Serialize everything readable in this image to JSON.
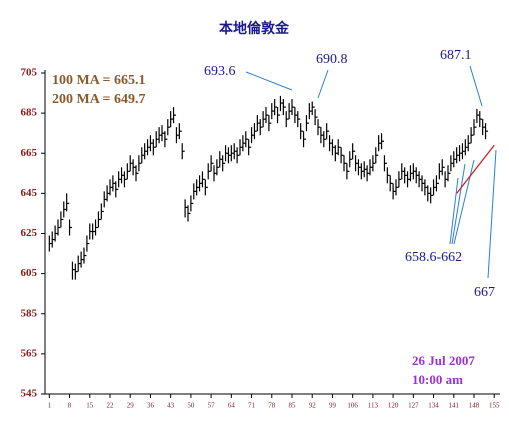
{
  "chart_data": {
    "type": "hlc",
    "title": "本地倫敦金",
    "annotations": [
      "100 MA = 665.1",
      "200 MA = 649.7",
      "693.6",
      "690.8",
      "687.1",
      "658.6-662",
      "667",
      "26 Jul 2007",
      "10:00 am"
    ],
    "x": [
      1,
      2,
      3,
      4,
      5,
      6,
      7,
      8,
      9,
      10,
      11,
      12,
      13,
      14,
      15,
      16,
      17,
      18,
      19,
      20,
      21,
      22,
      23,
      24,
      25,
      26,
      27,
      28,
      29,
      30,
      31,
      32,
      33,
      34,
      35,
      36,
      37,
      38,
      39,
      40,
      41,
      42,
      43,
      44,
      45,
      46,
      47,
      48,
      49,
      50,
      51,
      52,
      53,
      54,
      55,
      56,
      57,
      58,
      59,
      60,
      61,
      62,
      63,
      64,
      65,
      66,
      67,
      68,
      69,
      70,
      71,
      72,
      73,
      74,
      75,
      76,
      77,
      78,
      79,
      80,
      81,
      82,
      83,
      84,
      85,
      86,
      87,
      88,
      89,
      90,
      91,
      92,
      93,
      94,
      95,
      96,
      97,
      98,
      99,
      100,
      101,
      102,
      103,
      104,
      105,
      106,
      107,
      108,
      109,
      110,
      111,
      112,
      113,
      114,
      115,
      116,
      117,
      118,
      119,
      120,
      121,
      122,
      123,
      124,
      125,
      126,
      127,
      128,
      129,
      130,
      131,
      132,
      133,
      134,
      135,
      136,
      137,
      138,
      139,
      140,
      141,
      142,
      143,
      144,
      145,
      146,
      147,
      148,
      149,
      150,
      151,
      152
    ],
    "high": [
      624,
      626,
      629,
      632,
      636,
      641,
      645,
      632,
      611,
      610,
      614,
      616,
      618,
      624,
      630,
      630,
      632,
      636,
      640,
      646,
      649,
      652,
      654,
      651,
      656,
      658,
      656,
      660,
      664,
      662,
      659,
      664,
      668,
      670,
      672,
      674,
      672,
      676,
      678,
      679,
      676,
      682,
      686,
      688,
      678,
      680,
      670,
      642,
      639,
      644,
      650,
      652,
      654,
      656,
      652,
      660,
      664,
      659,
      662,
      666,
      664,
      669,
      668,
      669,
      670,
      668,
      672,
      674,
      676,
      672,
      678,
      680,
      684,
      682,
      686,
      688,
      684,
      690,
      692,
      688,
      693.6,
      692,
      686,
      690,
      692,
      688,
      686,
      680,
      676,
      684,
      690,
      690.8,
      687,
      682,
      678,
      676,
      680,
      674,
      672,
      669,
      672,
      668,
      664,
      660,
      666,
      670,
      664,
      662,
      660,
      661,
      659,
      662,
      664,
      668,
      674,
      675,
      664,
      658,
      654,
      650,
      652,
      656,
      660,
      658,
      656,
      659,
      660,
      658,
      656,
      654,
      652,
      649,
      648,
      652,
      654,
      660,
      662,
      656,
      659,
      664,
      666,
      668,
      669,
      670,
      672,
      674,
      678,
      682,
      687.1,
      686,
      682,
      680
    ],
    "low": [
      616,
      618,
      621,
      624,
      628,
      633,
      636,
      624,
      602,
      602,
      606,
      608,
      610,
      616,
      622,
      622,
      624,
      628,
      632,
      638,
      641,
      644,
      646,
      643,
      648,
      650,
      648,
      652,
      656,
      654,
      651,
      656,
      660,
      662,
      664,
      666,
      664,
      668,
      670,
      671,
      668,
      674,
      678,
      680,
      670,
      672,
      662,
      633,
      631,
      636,
      642,
      644,
      646,
      648,
      644,
      652,
      656,
      651,
      654,
      658,
      656,
      661,
      660,
      661,
      662,
      660,
      664,
      666,
      668,
      664,
      670,
      672,
      676,
      674,
      678,
      680,
      676,
      682,
      684,
      680,
      686,
      684,
      678,
      682,
      684,
      680,
      678,
      672,
      668,
      676,
      682,
      684,
      679,
      674,
      670,
      668,
      672,
      666,
      664,
      661,
      664,
      660,
      656,
      652,
      658,
      662,
      656,
      654,
      652,
      653,
      651,
      654,
      656,
      660,
      666,
      667,
      656,
      650,
      646,
      642,
      644,
      648,
      652,
      650,
      648,
      651,
      652,
      650,
      648,
      646,
      644,
      641,
      640,
      644,
      646,
      652,
      654,
      648,
      651,
      656,
      658,
      660,
      661,
      662,
      664,
      666,
      670,
      674,
      680,
      678,
      674,
      672
    ],
    "close": [
      620,
      622,
      625,
      628,
      632,
      637,
      640,
      628,
      607,
      606,
      610,
      612,
      614,
      620,
      626,
      626,
      628,
      632,
      636,
      642,
      645,
      648,
      650,
      647,
      652,
      654,
      652,
      656,
      660,
      658,
      655,
      660,
      664,
      666,
      668,
      670,
      668,
      672,
      674,
      675,
      672,
      678,
      682,
      684,
      674,
      676,
      666,
      638,
      635,
      640,
      646,
      648,
      650,
      652,
      648,
      656,
      660,
      655,
      658,
      662,
      660,
      665,
      664,
      665,
      666,
      664,
      668,
      670,
      672,
      668,
      674,
      676,
      680,
      678,
      682,
      684,
      680,
      686,
      688,
      684,
      690,
      688,
      682,
      686,
      688,
      684,
      682,
      676,
      672,
      680,
      686,
      688,
      683,
      678,
      674,
      672,
      676,
      670,
      668,
      665,
      668,
      664,
      660,
      656,
      662,
      666,
      660,
      658,
      656,
      657,
      655,
      658,
      660,
      664,
      670,
      671,
      660,
      654,
      650,
      646,
      648,
      652,
      656,
      654,
      652,
      655,
      656,
      654,
      652,
      650,
      648,
      645,
      644,
      648,
      650,
      656,
      658,
      652,
      655,
      660,
      662,
      664,
      665,
      666,
      668,
      670,
      674,
      678,
      684,
      682,
      678,
      676
    ],
    "color": "#000000",
    "trend_line": {
      "x": [
        142,
        155
      ],
      "y": [
        645,
        669
      ],
      "color": "#cc2222"
    },
    "xlim": [
      -0.5,
      157
    ],
    "xticks": [
      1,
      8,
      15,
      22,
      29,
      36,
      43,
      50,
      57,
      64,
      71,
      78,
      85,
      92,
      99,
      106,
      113,
      120,
      127,
      134,
      141,
      148,
      155
    ],
    "ylim": [
      545,
      705
    ],
    "yticks": [
      545,
      565,
      585,
      605,
      625,
      645,
      665,
      685,
      705
    ]
  }
}
